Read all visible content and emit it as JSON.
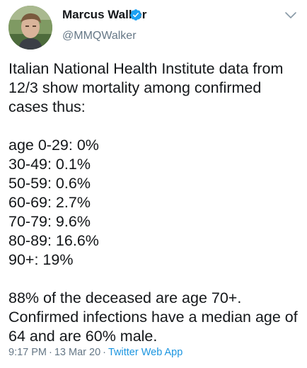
{
  "author": {
    "display_name": "Marcus Walker",
    "handle": "@MMQWalker",
    "verified": true,
    "verified_icon": "verified-badge-icon",
    "verified_color": "#1da1f2"
  },
  "menu": {
    "icon": "chevron-down-icon"
  },
  "tweet": {
    "paragraphs": [
      [
        "Italian National Health Institute data from",
        "12/3 show mortality among confirmed",
        "cases thus:"
      ],
      [
        "age 0-29: 0%",
        "30-49: 0.1%",
        "50-59: 0.6%",
        "60-69: 2.7%",
        "70-79: 9.6%",
        "80-89: 16.6%",
        "90+: 19%"
      ],
      [
        "88% of the deceased are age 70+.",
        "Confirmed infections have a median age of",
        "64 and are 60% male."
      ]
    ]
  },
  "meta": {
    "time": "9:17 PM",
    "separator": "·",
    "date": "13 Mar 20",
    "source": "Twitter Web App"
  },
  "colors": {
    "text": "#14171a",
    "secondary": "#657786",
    "link": "#1b95e0"
  }
}
